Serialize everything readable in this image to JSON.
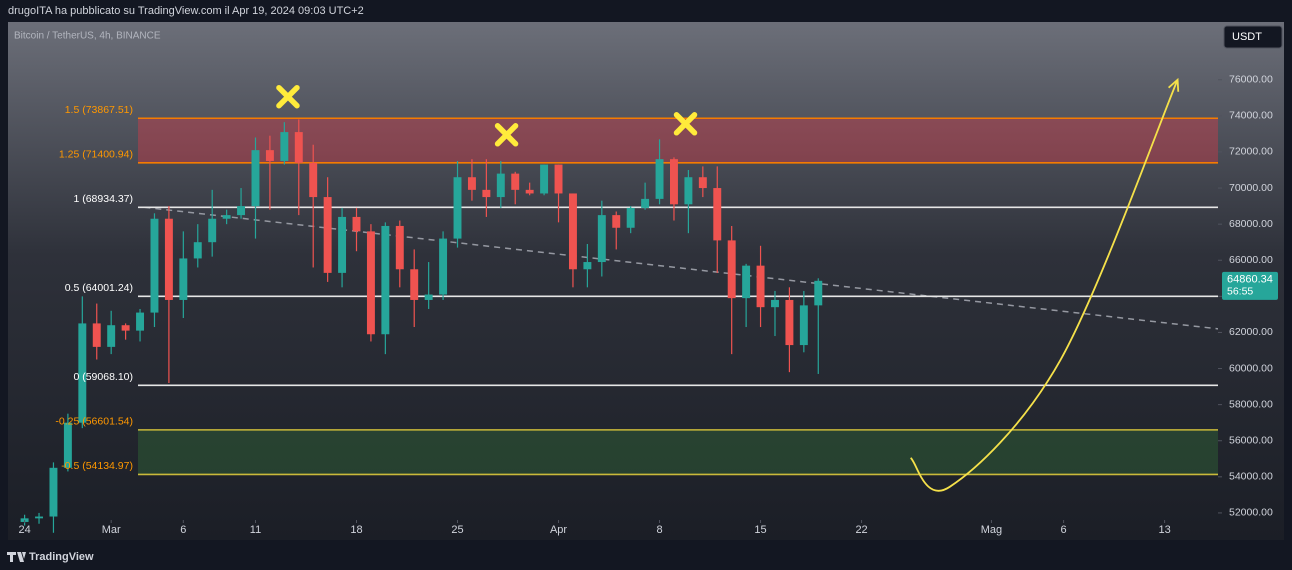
{
  "header": {
    "published": "drugoITA ha pubblicato su TradingView.com il Apr 19, 2024 09:03 UTC+2"
  },
  "footer": {
    "brand": "TradingView"
  },
  "chart_data": {
    "type": "candlestick",
    "title": "Bitcoin / TetherUS, 4h, BINANCE",
    "currency": "USDT",
    "up_color": "#26a69a",
    "down_color": "#ef5350",
    "xlim": [
      -1.15,
      82.7
    ],
    "ylim": [
      50500,
      79200
    ],
    "xticks": [
      {
        "value": 0,
        "label": "24"
      },
      {
        "value": 6,
        "label": "Mar"
      },
      {
        "value": 11,
        "label": "6"
      },
      {
        "value": 16,
        "label": "11"
      },
      {
        "value": 23,
        "label": "18"
      },
      {
        "value": 30,
        "label": "25"
      },
      {
        "value": 37,
        "label": "Apr"
      },
      {
        "value": 44,
        "label": "8"
      },
      {
        "value": 51,
        "label": "15"
      },
      {
        "value": 58,
        "label": "22"
      },
      {
        "value": 67,
        "label": "Mag"
      },
      {
        "value": 72,
        "label": "6"
      },
      {
        "value": 79,
        "label": "13"
      }
    ],
    "yticks": [
      {
        "value": 52000,
        "label": "52000.00"
      },
      {
        "value": 54000,
        "label": "54000.00"
      },
      {
        "value": 56000,
        "label": "56000.00"
      },
      {
        "value": 58000,
        "label": "58000.00"
      },
      {
        "value": 60000,
        "label": "60000.00"
      },
      {
        "value": 62000,
        "label": "62000.00"
      },
      {
        "value": 64000,
        "label": "64000.00"
      },
      {
        "value": 66000,
        "label": "66000.00"
      },
      {
        "value": 68000,
        "label": "68000.00"
      },
      {
        "value": 70000,
        "label": "70000.00"
      },
      {
        "value": 72000,
        "label": "72000.00"
      },
      {
        "value": 74000,
        "label": "74000.00"
      },
      {
        "value": 76000,
        "label": "76000.00"
      }
    ],
    "candles": {
      "x": [
        0,
        1,
        2,
        3,
        4,
        5,
        6,
        7,
        8,
        9,
        10,
        11,
        12,
        13,
        14,
        15,
        16,
        17,
        18,
        19,
        20,
        21,
        22,
        23,
        24,
        25,
        26,
        27,
        28,
        29,
        30,
        31,
        32,
        33,
        34,
        35,
        36,
        37,
        38,
        39,
        40,
        41,
        42,
        43,
        44,
        45,
        46,
        47,
        48,
        49,
        50,
        51,
        52,
        53,
        54,
        55
      ],
      "open": [
        51500,
        51700,
        51800,
        54500,
        57000,
        62500,
        61200,
        62400,
        62100,
        63100,
        68300,
        63800,
        66100,
        67000,
        68300,
        68500,
        69000,
        72100,
        71500,
        73100,
        71400,
        69500,
        65300,
        68400,
        67600,
        61900,
        67900,
        65500,
        63800,
        64100,
        67200,
        70600,
        69900,
        69500,
        70800,
        69900,
        69700,
        71300,
        69700,
        65500,
        65900,
        68500,
        67800,
        68900,
        69400,
        71600,
        69100,
        70600,
        70000,
        67100,
        63900,
        65700,
        63400,
        63800,
        61300,
        63500
      ],
      "high": [
        51900,
        52000,
        54800,
        57500,
        64000,
        63600,
        63200,
        62500,
        63300,
        68600,
        69000,
        67600,
        68000,
        69900,
        68800,
        70000,
        72800,
        72900,
        73650,
        73800,
        72400,
        70600,
        68900,
        68900,
        68000,
        68100,
        68200,
        66600,
        65900,
        67600,
        71500,
        71600,
        71600,
        71500,
        70900,
        70300,
        71300,
        71300,
        69700,
        66900,
        69300,
        68700,
        69000,
        70300,
        72700,
        71700,
        71000,
        71200,
        71200,
        67900,
        65800,
        66800,
        64300,
        64500,
        64300,
        65000
      ],
      "low": [
        51300,
        51400,
        50900,
        54300,
        56700,
        60500,
        60800,
        61600,
        61500,
        62300,
        59200,
        62800,
        65600,
        66200,
        68000,
        68300,
        67200,
        68800,
        71300,
        68500,
        65600,
        64800,
        64500,
        66500,
        61500,
        60800,
        64500,
        62300,
        63300,
        63800,
        66700,
        69300,
        68400,
        68900,
        69100,
        69600,
        69600,
        68100,
        64500,
        64500,
        65100,
        66600,
        67500,
        68800,
        69100,
        68200,
        67500,
        69500,
        65300,
        60800,
        62300,
        62300,
        61800,
        59800,
        60900,
        59700
      ],
      "close": [
        51700,
        51800,
        54500,
        57000,
        62500,
        61200,
        62400,
        62100,
        63100,
        68300,
        63800,
        66100,
        67000,
        68300,
        68500,
        69000,
        72100,
        71500,
        73100,
        71400,
        69500,
        65300,
        68400,
        67600,
        61900,
        67900,
        65500,
        63800,
        64100,
        67200,
        70600,
        69900,
        69500,
        70800,
        69900,
        69700,
        71300,
        69700,
        65500,
        65900,
        68500,
        67800,
        68900,
        69400,
        71600,
        69100,
        70600,
        70000,
        67100,
        63900,
        65700,
        63400,
        63800,
        61300,
        63500,
        64860.34
      ]
    },
    "last_price": 64860.34,
    "countdown": "56:55",
    "levels": [
      {
        "label": "1.5 (73867.51)",
        "value": 73867.51,
        "color": "#f57c00",
        "text_color": "#ff9800"
      },
      {
        "label": "1.25 (71400.94)",
        "value": 71400.94,
        "color": "#f57c00",
        "text_color": "#ff9800"
      },
      {
        "label": "1 (68934.37)",
        "value": 68934.37,
        "color": "#e6e6e6",
        "text_color": "#ffffff"
      },
      {
        "label": "0.5 (64001.24)",
        "value": 64001.24,
        "color": "#e6e6e6",
        "text_color": "#ffffff"
      },
      {
        "label": "0 (59068.10)",
        "value": 59068.1,
        "color": "#e6e6e6",
        "text_color": "#ffffff"
      },
      {
        "label": "-0.25 (56601.54)",
        "value": 56601.54,
        "color": "#c9b93a",
        "text_color": "#ff9800"
      },
      {
        "label": "-0.5 (54134.97)",
        "value": 54134.97,
        "color": "#c9b93a",
        "text_color": "#ff9800"
      }
    ],
    "zone_colors": [
      "rgba(242,54,69,0.35)",
      "rgba(56,142,60,0.28)"
    ],
    "trendline": {
      "x": [
        8.3,
        82.7
      ],
      "y": [
        68934,
        62200
      ],
      "color": "#9598a1"
    },
    "markers": {
      "x": [
        18.25,
        33.4,
        45.8
      ],
      "y": [
        75060,
        72950,
        73560
      ],
      "color": "#ffeb3b"
    },
    "projection": {
      "x": [
        61.4,
        64.1,
        71.8,
        79.9
      ],
      "y": [
        55050,
        53440,
        60500,
        76000
      ],
      "color": "#f5e14a"
    }
  }
}
